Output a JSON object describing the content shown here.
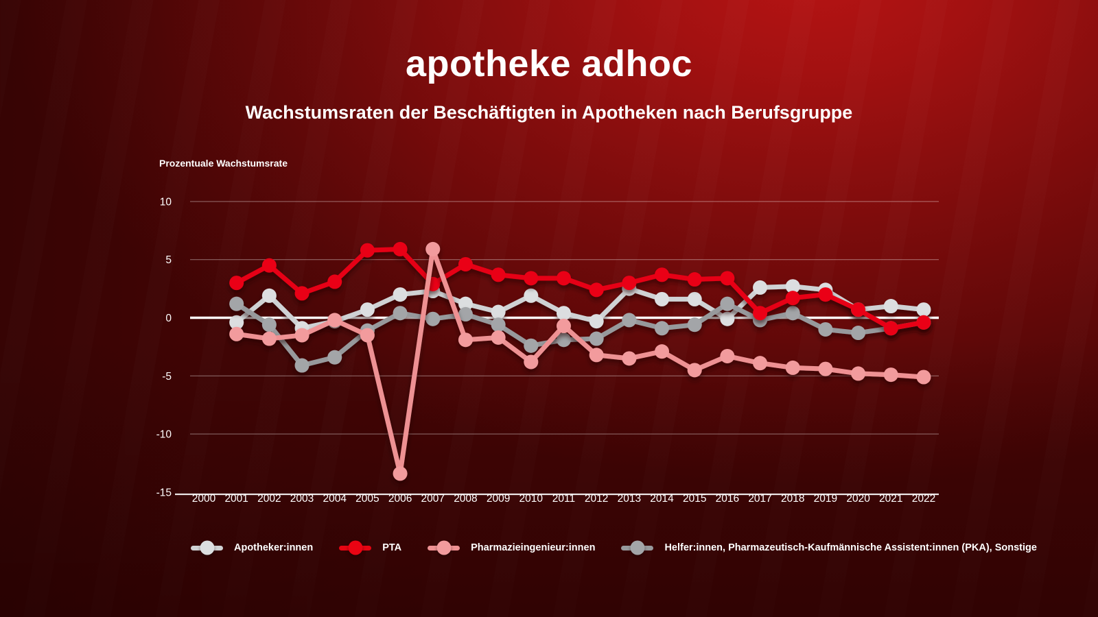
{
  "header": {
    "logo": "apotheke adhoc"
  },
  "chart_data": {
    "type": "line",
    "title": "Wachstumsraten der Beschäftigten in Apotheken nach Berufsgruppe",
    "ylabel": "Prozentuale Wachstumsrate",
    "x_axis_years": [
      2000,
      2001,
      2002,
      2003,
      2004,
      2005,
      2006,
      2007,
      2008,
      2009,
      2010,
      2011,
      2012,
      2013,
      2014,
      2015,
      2016,
      2017,
      2018,
      2019,
      2020,
      2021,
      2022
    ],
    "x": [
      2001,
      2002,
      2003,
      2004,
      2005,
      2006,
      2007,
      2008,
      2009,
      2010,
      2011,
      2012,
      2013,
      2014,
      2015,
      2016,
      2017,
      2018,
      2019,
      2020,
      2021,
      2022
    ],
    "yticks": [
      10,
      5,
      0,
      -5,
      -10,
      -15
    ],
    "ylim": [
      -15,
      10
    ],
    "grid": true,
    "legend_position": "bottom",
    "zero_line_color": "#ffffff",
    "draw_order": [
      0,
      3,
      1,
      2
    ],
    "series": [
      {
        "name": "Apotheker:innen",
        "color": "#cfd2d4",
        "dot_color": "#dcdee0",
        "values": [
          -0.4,
          1.9,
          -0.9,
          -0.3,
          0.7,
          2.0,
          2.3,
          1.2,
          0.5,
          1.9,
          0.4,
          -0.3,
          2.5,
          1.6,
          1.6,
          -0.1,
          2.6,
          2.7,
          2.4,
          0.7,
          1.0,
          0.7
        ]
      },
      {
        "name": "PTA",
        "color": "#e60512",
        "dot_color": "#ea0413",
        "values": [
          3.0,
          4.5,
          2.1,
          3.1,
          5.8,
          5.9,
          2.9,
          4.6,
          3.7,
          3.4,
          3.4,
          2.4,
          3.0,
          3.7,
          3.3,
          3.4,
          0.4,
          1.7,
          2.0,
          0.7,
          -0.9,
          -0.4
        ]
      },
      {
        "name": "Pharmazieingenieur:innen",
        "color": "#ee9193",
        "dot_color": "#f29b9d",
        "values": [
          -1.4,
          -1.8,
          -1.5,
          -0.2,
          -1.5,
          -13.4,
          5.9,
          -1.9,
          -1.7,
          -3.8,
          -0.7,
          -3.2,
          -3.5,
          -2.9,
          -4.5,
          -3.3,
          -3.9,
          -4.3,
          -4.4,
          -4.8,
          -4.9,
          -5.1
        ]
      },
      {
        "name": "Helfer:innen, Pharmazeutisch-Kaufmännische Assistent:innen (PKA), Sonstige",
        "color": "#97999c",
        "dot_color": "#a3a5a8",
        "values": [
          1.2,
          -0.6,
          -4.1,
          -3.4,
          -1.1,
          0.4,
          -0.1,
          0.3,
          -0.6,
          -2.4,
          -1.9,
          -1.8,
          -0.2,
          -0.9,
          -0.6,
          1.2,
          -0.2,
          0.4,
          -1.0,
          -1.3,
          -0.9,
          -0.4
        ]
      }
    ]
  }
}
